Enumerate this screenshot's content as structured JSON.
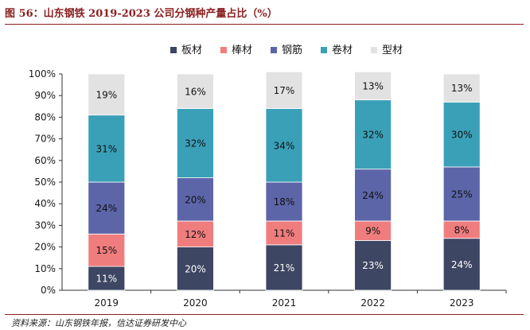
{
  "figure": {
    "title": "图 56：山东钢铁 2019-2023 公司分钢种产量占比（%）",
    "source": "资料来源：山东钢铁年报，信达证券研发中心"
  },
  "chart_data": {
    "type": "bar",
    "stacked": true,
    "categories": [
      "2019",
      "2020",
      "2021",
      "2022",
      "2023"
    ],
    "series": [
      {
        "name": "板材",
        "color": "#3d4663",
        "values": [
          11,
          20,
          21,
          23,
          24
        ]
      },
      {
        "name": "棒材",
        "color": "#f07d7e",
        "values": [
          15,
          12,
          11,
          9,
          8
        ]
      },
      {
        "name": "钢筋",
        "color": "#5c65a8",
        "values": [
          24,
          20,
          18,
          24,
          25
        ]
      },
      {
        "name": "卷材",
        "color": "#3aa0b8",
        "values": [
          31,
          32,
          34,
          32,
          30
        ]
      },
      {
        "name": "型材",
        "color": "#e2e2e2",
        "values": [
          19,
          16,
          17,
          13,
          13
        ]
      }
    ],
    "value_labels_suffix": "%",
    "ylim": [
      0,
      100
    ],
    "ytick_step": 10,
    "ytick_suffix": "%",
    "legend_position": "top-right",
    "grid": false
  }
}
